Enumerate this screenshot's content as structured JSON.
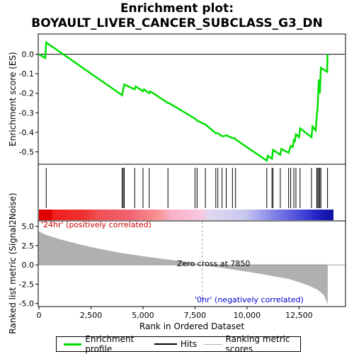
{
  "title_line1": "Enrichment plot:",
  "title_line2": "BOYAULT_LIVER_CANCER_SUBCLASS_G3_DN",
  "legend": {
    "items": [
      {
        "label": "Enrichment profile",
        "color": "#00e000"
      },
      {
        "label": "Hits",
        "color": "#000000"
      },
      {
        "label": "Ranking metric scores",
        "color": "#b0b0b0"
      }
    ]
  },
  "chart_data": [
    {
      "type": "line",
      "panel": "enrichment",
      "ylabel": "Enrichment score (ES)",
      "ylim": [
        -0.56,
        0.1
      ],
      "xlim": [
        0,
        14700
      ],
      "yticks": [
        0.0,
        -0.1,
        -0.2,
        -0.3,
        -0.4,
        -0.5
      ],
      "ytick_labels": [
        "0.0",
        "-0.1",
        "-0.2",
        "-0.3",
        "-0.4",
        "-0.5"
      ],
      "grid": false,
      "color": "#00e000",
      "points": [
        [
          0,
          0.0
        ],
        [
          300,
          -0.02
        ],
        [
          350,
          0.06
        ],
        [
          4000,
          -0.21
        ],
        [
          4050,
          -0.18
        ],
        [
          4100,
          -0.155
        ],
        [
          4600,
          -0.18
        ],
        [
          4650,
          -0.165
        ],
        [
          5000,
          -0.19
        ],
        [
          5050,
          -0.18
        ],
        [
          5300,
          -0.2
        ],
        [
          5350,
          -0.19
        ],
        [
          6200,
          -0.25
        ],
        [
          6250,
          -0.25
        ],
        [
          7500,
          -0.33
        ],
        [
          7600,
          -0.34
        ],
        [
          8000,
          -0.36
        ],
        [
          8500,
          -0.405
        ],
        [
          8600,
          -0.405
        ],
        [
          8800,
          -0.42
        ],
        [
          8900,
          -0.42
        ],
        [
          9000,
          -0.415
        ],
        [
          9300,
          -0.43
        ],
        [
          9400,
          -0.43
        ],
        [
          9500,
          -0.44
        ],
        [
          10950,
          -0.545
        ],
        [
          11000,
          -0.52
        ],
        [
          11200,
          -0.535
        ],
        [
          11250,
          -0.49
        ],
        [
          11600,
          -0.515
        ],
        [
          11650,
          -0.485
        ],
        [
          12000,
          -0.505
        ],
        [
          12100,
          -0.47
        ],
        [
          12200,
          -0.475
        ],
        [
          12250,
          -0.44
        ],
        [
          12300,
          -0.445
        ],
        [
          12350,
          -0.41
        ],
        [
          12500,
          -0.425
        ],
        [
          12550,
          -0.38
        ],
        [
          13100,
          -0.425
        ],
        [
          13150,
          -0.37
        ],
        [
          13300,
          -0.39
        ],
        [
          13350,
          -0.32
        ],
        [
          13400,
          -0.26
        ],
        [
          13450,
          -0.13
        ],
        [
          13500,
          -0.2
        ],
        [
          13550,
          -0.07
        ],
        [
          13850,
          -0.09
        ],
        [
          13870,
          0.0
        ]
      ]
    },
    {
      "type": "hits",
      "panel": "hits",
      "xlim": [
        0,
        14700
      ],
      "hit_ranks": [
        350,
        4000,
        4050,
        4100,
        4600,
        5000,
        5300,
        6200,
        7500,
        7600,
        8000,
        8500,
        8600,
        8800,
        9000,
        9300,
        9450,
        10950,
        11200,
        11250,
        11600,
        12000,
        12100,
        12250,
        12350,
        12550,
        13100,
        13350,
        13400,
        13450,
        13500,
        13550,
        13870
      ]
    },
    {
      "type": "area",
      "panel": "ranking",
      "xlabel": "Rank in Ordered Dataset",
      "ylabel": "Ranked list metric (Signal2Noise)",
      "xlim": [
        0,
        14700
      ],
      "ylim": [
        -5.3,
        5.6
      ],
      "xticks": [
        0,
        2500,
        5000,
        7500,
        10000,
        12500
      ],
      "xtick_labels": [
        "0",
        "2,500",
        "5,000",
        "7,500",
        "10,000",
        "12,500"
      ],
      "yticks": [
        5.0,
        2.5,
        0.0,
        -2.5,
        -5.0
      ],
      "ytick_labels": [
        "5.0",
        "2.5",
        "0.0",
        "-2.5",
        "-5.0"
      ],
      "zero_cross": 7850,
      "zero_cross_label": "Zero cross at 7850",
      "pos_label": "'24hr' (positively correlated)",
      "neg_label": "'0hr' (negatively correlated)",
      "pos_label_color": "#cc0000",
      "neg_label_color": "#0000cc",
      "fill_color": "#b0b0b0",
      "points": [
        [
          0,
          4.3
        ],
        [
          300,
          3.9
        ],
        [
          1000,
          3.3
        ],
        [
          2000,
          2.6
        ],
        [
          3000,
          2.0
        ],
        [
          4000,
          1.5
        ],
        [
          5000,
          1.1
        ],
        [
          6000,
          0.75
        ],
        [
          7000,
          0.4
        ],
        [
          7850,
          0.0
        ],
        [
          9000,
          -0.45
        ],
        [
          10000,
          -0.85
        ],
        [
          11000,
          -1.3
        ],
        [
          12000,
          -1.8
        ],
        [
          12500,
          -2.2
        ],
        [
          13000,
          -2.7
        ],
        [
          13400,
          -3.2
        ],
        [
          13700,
          -3.9
        ],
        [
          13870,
          -5.0
        ]
      ]
    }
  ]
}
